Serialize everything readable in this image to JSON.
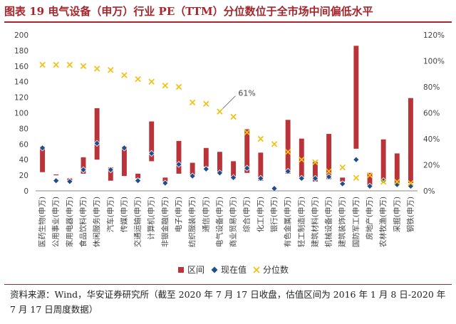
{
  "title": "图表 19 电气设备（申万）行业 PE（TTM）分位数位于全市场中间偏低水平",
  "source": "资料来源：Wind，华安证券研究所（截至 2020 年 7 月 17 日收盘，估值区间为 2016 年 1 月 8 日-2020 年 7 月 17 日周度数据）",
  "chart_data": {
    "type": "bar",
    "categories": [
      "医药生物(申万)",
      "公用事业(申万)",
      "家用电器(申万)",
      "食品饮料(申万)",
      "休闲服务(申万)",
      "汽车(申万)",
      "传媒(申万)",
      "交通运输(申万)",
      "计算机(申万)",
      "非银金融(申万)",
      "电子(申万)",
      "纺织服装(申万)",
      "通信(申万)",
      "电气设备(申万)",
      "商业贸易(申万)",
      "综合(申万)",
      "化工(申万)",
      "银行(申万)",
      "有色金属(申万)",
      "轻工制造(申万)",
      "建筑材料(申万)",
      "机械设备(申万)",
      "建筑装饰(申万)",
      "国防军工(申万)",
      "房地产(申万)",
      "农林牧渔(申万)",
      "采掘(申万)",
      "钢铁(申万)"
    ],
    "range_low": [
      24,
      21,
      11,
      22,
      40,
      13,
      19,
      16,
      38,
      12,
      22,
      20,
      31,
      23,
      15,
      23,
      13,
      3,
      22,
      15,
      12,
      15,
      12,
      54,
      5,
      12,
      10,
      10
    ],
    "range_high": [
      57,
      21,
      16,
      43,
      106,
      30,
      57,
      22,
      89,
      17,
      64,
      36,
      55,
      50,
      38,
      79,
      49,
      3,
      91,
      67,
      37,
      73,
      17,
      186,
      23,
      66,
      48,
      119
    ],
    "current": [
      55,
      13,
      12,
      27,
      61,
      27,
      55,
      13,
      48,
      10,
      34,
      19,
      28,
      23,
      17,
      29,
      16,
      3,
      25,
      16,
      16,
      18,
      9,
      40,
      6,
      13,
      8,
      6
    ],
    "percentile": [
      97,
      97,
      97,
      96,
      94,
      93,
      89,
      86,
      84,
      81,
      80,
      68,
      67,
      61,
      57,
      45,
      40,
      36,
      30,
      24,
      22,
      15,
      18,
      10,
      12,
      7,
      7,
      6
    ],
    "y_left": {
      "min": 0,
      "max": 200,
      "ticks": [
        "0",
        "20",
        "40",
        "60",
        "80",
        "100",
        "120",
        "140",
        "160",
        "180",
        "200"
      ]
    },
    "y_right": {
      "min": 0,
      "max": 120,
      "ticks": [
        "0%",
        "20%",
        "40%",
        "60%",
        "80%",
        "100%",
        "120%"
      ]
    },
    "annotation": {
      "label": "61%",
      "category_index": 13
    },
    "legend": [
      {
        "name": "区间",
        "color": "#b93339"
      },
      {
        "name": "现在值",
        "color": "#1f4e8c"
      },
      {
        "name": "分位数",
        "color": "#f2c21a"
      }
    ]
  }
}
